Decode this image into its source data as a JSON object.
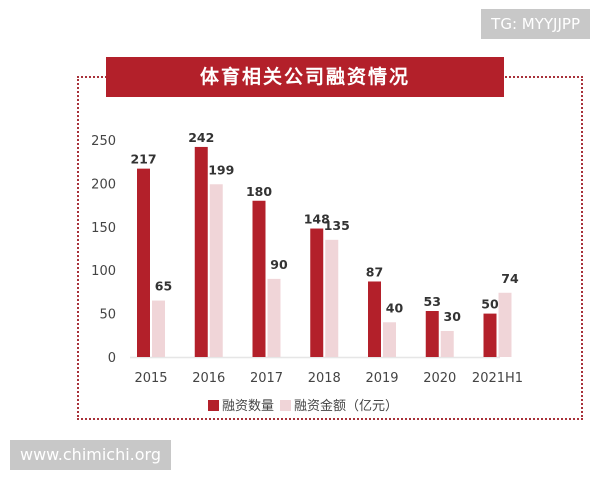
{
  "watermarks": {
    "top": "TG: MYYJJPP",
    "bottom": "www.chimichi.org"
  },
  "chart_data": {
    "type": "bar",
    "title": "体育相关公司融资情况",
    "categories": [
      "2015",
      "2016",
      "2017",
      "2018",
      "2019",
      "2020",
      "2021H1"
    ],
    "series": [
      {
        "name": "融资数量",
        "color": "#b3202a",
        "values": [
          217,
          242,
          180,
          148,
          87,
          53,
          50
        ]
      },
      {
        "name": "融资金额（亿元）",
        "color": "#f0d5d8",
        "values": [
          65,
          199,
          90,
          135,
          40,
          30,
          74
        ]
      }
    ],
    "yticks": [
      0,
      50,
      100,
      150,
      200,
      250
    ],
    "ylim": [
      0,
      250
    ],
    "grid": false,
    "legend": "bottom"
  }
}
